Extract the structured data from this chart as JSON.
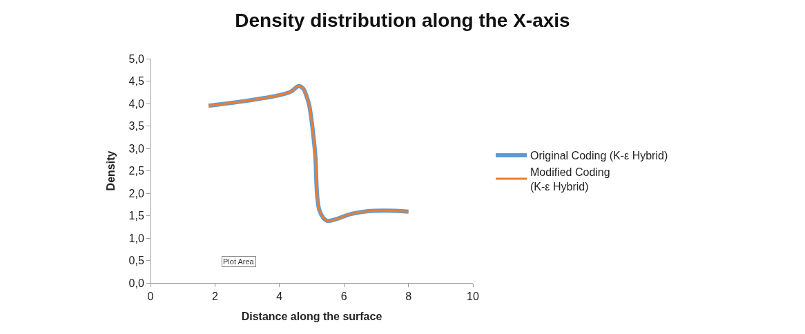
{
  "chart_data": {
    "type": "line",
    "title": "Density distribution along the X-axis",
    "xlabel": "Distance along the surface",
    "ylabel": "Density",
    "xlim": [
      0,
      10
    ],
    "xticks": [
      0,
      2,
      4,
      6,
      8,
      10
    ],
    "ylim": [
      0,
      5
    ],
    "yticks": [
      {
        "value": 0,
        "label": "0,0"
      },
      {
        "value": 0.5,
        "label": "0,5"
      },
      {
        "value": 1,
        "label": "1,0"
      },
      {
        "value": 1.5,
        "label": "1,5"
      },
      {
        "value": 2,
        "label": "2,0"
      },
      {
        "value": 2.5,
        "label": "2,5"
      },
      {
        "value": 3,
        "label": "3,0"
      },
      {
        "value": 3.5,
        "label": "3,5"
      },
      {
        "value": 4,
        "label": "4,0"
      },
      {
        "value": 4.5,
        "label": "4,5"
      },
      {
        "value": 5,
        "label": "5,0"
      }
    ],
    "legend": "right",
    "marker": "none",
    "line_style": "solid",
    "x": [
      1.8,
      4.31,
      4.6,
      4.74,
      4.81,
      4.92,
      5.1,
      5.24,
      5.46,
      5.75,
      6.18,
      6.75,
      7.33,
      8.0
    ],
    "series": [
      {
        "name": "Original Coding (K-ε Hybrid)",
        "color": "#5b9bd5",
        "values": [
          3.95,
          4.25,
          4.39,
          4.33,
          4.22,
          3.97,
          2.95,
          1.62,
          1.39,
          1.42,
          1.53,
          1.6,
          1.61,
          1.59
        ]
      },
      {
        "name": "Modified Coding\n(K-ε Hybrid)",
        "color": "#ed7d31",
        "values": [
          3.95,
          4.25,
          4.39,
          4.33,
          4.22,
          3.97,
          2.95,
          1.62,
          1.39,
          1.42,
          1.53,
          1.6,
          1.61,
          1.59
        ]
      }
    ],
    "annotations": [
      "Plot Area"
    ]
  }
}
